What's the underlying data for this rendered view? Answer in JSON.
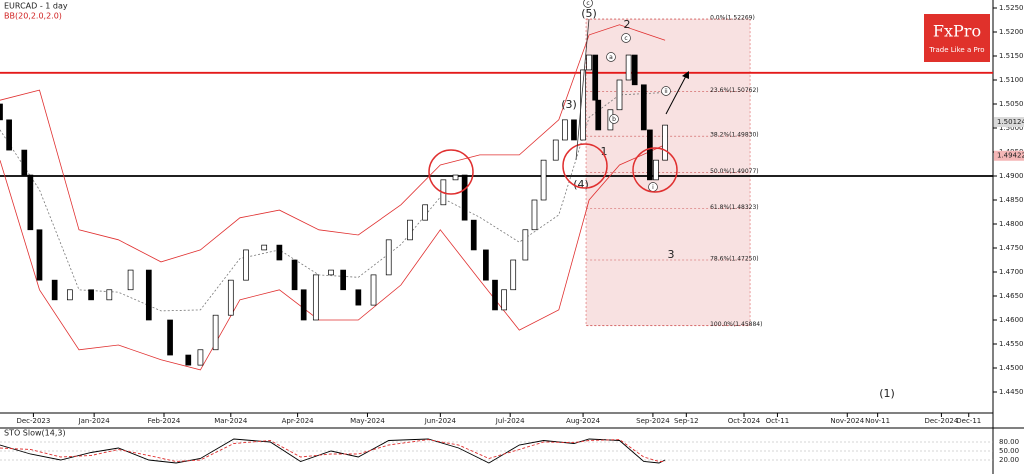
{
  "chart_data": [
    {
      "type": "candlestick",
      "title": "EURCAD - 1 day",
      "subtitle": "BB(20,2.0,2.0)",
      "x": [
        0,
        3,
        8,
        10,
        13,
        18,
        23,
        30,
        36,
        43,
        49,
        56,
        62,
        66,
        71,
        76,
        81,
        87,
        92,
        97,
        100,
        104,
        109,
        113,
        118,
        123,
        128,
        135,
        140,
        146,
        150,
        153,
        156,
        160,
        163,
        166,
        169,
        173,
        176,
        179,
        183,
        186,
        189,
        192,
        194,
        196,
        197,
        201,
        204,
        207,
        209,
        212,
        214,
        216,
        219
      ],
      "open": [
        1.505,
        1.5017,
        1.4954,
        1.4902,
        1.4788,
        1.4683,
        1.4642,
        1.4663,
        1.4642,
        1.4663,
        1.4704,
        1.46,
        1.4527,
        1.4506,
        1.4538,
        1.461,
        1.4683,
        1.4746,
        1.4756,
        1.4725,
        1.4663,
        1.46,
        1.4694,
        1.4704,
        1.4663,
        1.4631,
        1.4694,
        1.4767,
        1.4808,
        1.484,
        1.4892,
        1.4902,
        1.4808,
        1.4746,
        1.4683,
        1.4621,
        1.4663,
        1.4725,
        1.4788,
        1.485,
        1.4933,
        1.4975,
        1.5017,
        1.4975,
        1.5121,
        1.5152,
        1.5058,
        1.4996,
        1.5038,
        1.51,
        1.5152,
        1.509,
        1.4996,
        1.4892,
        1.4933
      ],
      "close": [
        1.5017,
        1.4954,
        1.4902,
        1.4788,
        1.4683,
        1.4642,
        1.4663,
        1.4642,
        1.4663,
        1.4704,
        1.46,
        1.4527,
        1.4506,
        1.4538,
        1.461,
        1.4683,
        1.4746,
        1.4756,
        1.4725,
        1.4663,
        1.46,
        1.4694,
        1.4704,
        1.4663,
        1.4631,
        1.4694,
        1.4767,
        1.4808,
        1.484,
        1.4892,
        1.4902,
        1.4808,
        1.4746,
        1.4683,
        1.4621,
        1.4663,
        1.4725,
        1.4788,
        1.485,
        1.4933,
        1.4975,
        1.5017,
        1.4975,
        1.5121,
        1.5152,
        1.5058,
        1.4996,
        1.5038,
        1.51,
        1.5152,
        1.509,
        1.4996,
        1.4892,
        1.4933,
        1.5006
      ],
      "up_color": "#ffffff",
      "down_color": "#000000",
      "bands": {
        "x": [
          0,
          13,
          26,
          39,
          53,
          66,
          79,
          92,
          105,
          118,
          132,
          145,
          158,
          171,
          184,
          194,
          204,
          219
        ],
        "upper": [
          1.5058,
          1.5079,
          1.4788,
          1.4767,
          1.4721,
          1.4746,
          1.4813,
          1.4829,
          1.4788,
          1.4777,
          1.484,
          1.4923,
          1.4944,
          1.4944,
          1.5017,
          1.5194,
          1.5215,
          1.5183
        ],
        "middle": [
          1.4996,
          1.4871,
          1.4663,
          1.4658,
          1.4619,
          1.4621,
          1.4728,
          1.4746,
          1.4694,
          1.4689,
          1.4757,
          1.4856,
          1.4814,
          1.4762,
          1.4819,
          1.5022,
          1.5069,
          1.5074
        ],
        "lower": [
          1.4933,
          1.4663,
          1.4538,
          1.4548,
          1.4517,
          1.4496,
          1.4642,
          1.4663,
          1.46,
          1.46,
          1.4673,
          1.4788,
          1.4683,
          1.4579,
          1.4621,
          1.485,
          1.4923,
          1.4965
        ],
        "color": "#e03030",
        "middle_color": "#777777"
      },
      "levels": [
        {
          "value": 1.5115,
          "color": "#e41a1a"
        },
        {
          "value": 1.49,
          "color": "#000000"
        }
      ],
      "fibonacci": {
        "x": [
          193,
          247
        ],
        "color": "#e99a9a",
        "levels": [
          {
            "value": 1.52269,
            "label": "0.0%(1.52269)"
          },
          {
            "value": 1.50762,
            "label": "23.6%(1.50762)"
          },
          {
            "value": 1.4983,
            "label": "38.2%(1.49830)"
          },
          {
            "value": 1.49077,
            "label": "50.0%(1.49077)"
          },
          {
            "value": 1.48323,
            "label": "61.8%(1.48323)"
          },
          {
            "value": 1.4725,
            "label": "78.6%(1.47250)"
          },
          {
            "value": 1.45884,
            "label": "100.0%(1.45884)"
          }
        ]
      },
      "price_labels": [
        {
          "value": 1.50124,
          "label": "1.50124",
          "color": "#d9d9d9"
        },
        {
          "value": 1.49422,
          "label": "1.49422",
          "color": "#f4b6b6"
        }
      ],
      "annotations": [
        "(5)",
        "2",
        "(3)",
        "1",
        "(4)",
        "3",
        "(1)"
      ],
      "circled_labels": [
        "c",
        "c",
        "a",
        "b",
        "ii",
        "i"
      ],
      "xlim": [
        0,
        326
      ],
      "xticks": [
        {
          "value": 11,
          "label": "Dec-2023"
        },
        {
          "value": 31,
          "label": "Jan-2024"
        },
        {
          "value": 54,
          "label": "Feb-2024"
        },
        {
          "value": 76,
          "label": "Mar-2024"
        },
        {
          "value": 98,
          "label": "Apr-2024"
        },
        {
          "value": 121,
          "label": "May-2024"
        },
        {
          "value": 145,
          "label": "Jun-2024"
        },
        {
          "value": 168,
          "label": "Jul-2024"
        },
        {
          "value": 192,
          "label": "Aug-2024"
        },
        {
          "value": 215,
          "label": "Sep-2024"
        },
        {
          "value": 226,
          "label": "Sep-12"
        },
        {
          "value": 245,
          "label": "Oct-2024"
        },
        {
          "value": 256,
          "label": "Oct-11"
        },
        {
          "value": 279,
          "label": "Nov-2024"
        },
        {
          "value": 289,
          "label": "Nov-11"
        },
        {
          "value": 310,
          "label": "Dec-2024"
        },
        {
          "value": 319,
          "label": "Dec-11"
        }
      ],
      "ylim": [
        1.445,
        1.525
      ],
      "yticks": [
        {
          "value": 1.525,
          "label": "1.52500"
        },
        {
          "value": 1.52,
          "label": "1.52000"
        },
        {
          "value": 1.515,
          "label": "1.51500"
        },
        {
          "value": 1.51,
          "label": "1.51000"
        },
        {
          "value": 1.505,
          "label": "1.50500"
        },
        {
          "value": 1.5,
          "label": "1.50000"
        },
        {
          "value": 1.495,
          "label": "1.49500"
        },
        {
          "value": 1.49,
          "label": "1.49000"
        },
        {
          "value": 1.485,
          "label": "1.48500"
        },
        {
          "value": 1.48,
          "label": "1.48000"
        },
        {
          "value": 1.475,
          "label": "1.47500"
        },
        {
          "value": 1.47,
          "label": "1.47000"
        },
        {
          "value": 1.465,
          "label": "1.46500"
        },
        {
          "value": 1.46,
          "label": "1.46000"
        },
        {
          "value": 1.455,
          "label": "1.45500"
        },
        {
          "value": 1.45,
          "label": "1.45000"
        },
        {
          "value": 1.445,
          "label": "1.44500"
        }
      ]
    },
    {
      "type": "line",
      "title": "STO Slow(14,3)",
      "x": [
        0,
        10,
        20,
        30,
        39,
        49,
        58,
        66,
        77,
        89,
        99,
        109,
        118,
        128,
        141,
        151,
        161,
        171,
        179,
        189,
        194,
        204,
        212,
        217,
        219
      ],
      "series": [
        {
          "color": "#000000",
          "values": [
            70,
            40,
            20,
            45,
            60,
            20,
            10,
            25,
            90,
            80,
            15,
            50,
            30,
            85,
            90,
            60,
            10,
            70,
            85,
            75,
            90,
            85,
            15,
            10,
            20
          ]
        },
        {
          "color": "#e03030",
          "values": [
            60,
            55,
            30,
            35,
            55,
            35,
            15,
            20,
            75,
            85,
            30,
            40,
            40,
            70,
            88,
            70,
            25,
            55,
            80,
            78,
            85,
            88,
            30,
            15,
            15
          ]
        }
      ],
      "ylim": [
        0,
        100
      ],
      "yticks": [
        {
          "value": 80,
          "label": "80.00"
        },
        {
          "value": 50,
          "label": "50.00"
        },
        {
          "value": 20,
          "label": "20.00"
        }
      ]
    }
  ],
  "logo": {
    "name": "FxPro",
    "tagline": "Trade Like a Pro"
  }
}
